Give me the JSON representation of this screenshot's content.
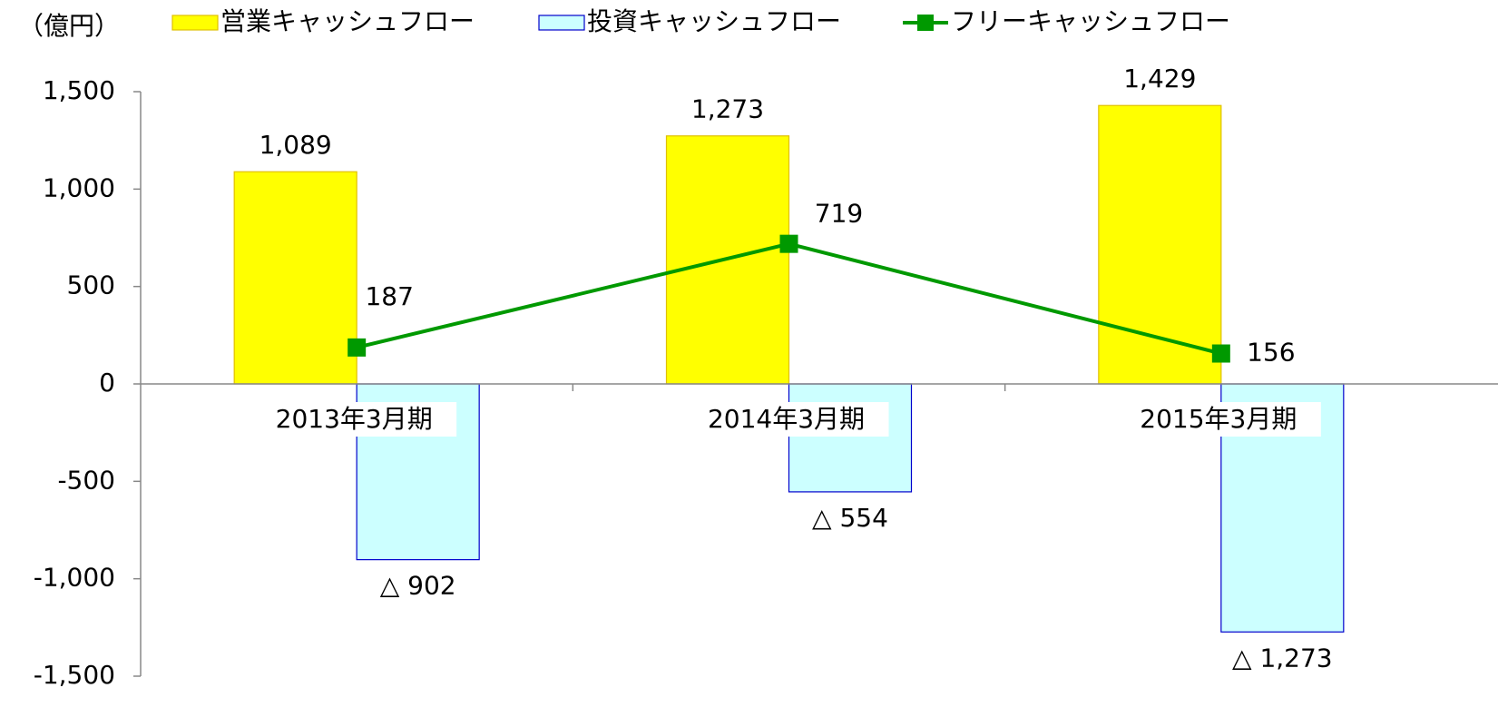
{
  "chart_data": {
    "type": "bar",
    "y_label": "（億円）",
    "categories": [
      "2013年3月期",
      "2014年3月期",
      "2015年3月期"
    ],
    "series": [
      {
        "name": "営業キャッシュフロー",
        "type": "bar",
        "color": "#ffff00",
        "edge": "#e0c000",
        "label_color": "#000000",
        "values": [
          1089,
          1273,
          1429
        ],
        "value_labels": [
          "1,089",
          "1,273",
          "1,429"
        ]
      },
      {
        "name": "投資キャッシュフロー",
        "type": "bar",
        "color": "#ccffff",
        "edge": "#0000cc",
        "label_color": "#1a1aff",
        "values": [
          -902,
          -554,
          -1273
        ],
        "value_labels": [
          "△ 902",
          "△ 554",
          "△ 1,273"
        ]
      },
      {
        "name": "フリーキャッシュフロー",
        "type": "line",
        "color": "#009900",
        "label_color": "#009900",
        "values": [
          187,
          719,
          156
        ]
      }
    ],
    "ylim": [
      -1500,
      1500
    ],
    "yticks": [
      {
        "value": -1500,
        "label": "-1,500"
      },
      {
        "value": -1000,
        "label": "-1,000"
      },
      -500,
      0,
      500,
      {
        "value": 1000,
        "label": "1,000"
      },
      {
        "value": 1500,
        "label": "1,500"
      }
    ],
    "negative_tick_color": "#ff0000",
    "grid": false,
    "legend": "top"
  }
}
